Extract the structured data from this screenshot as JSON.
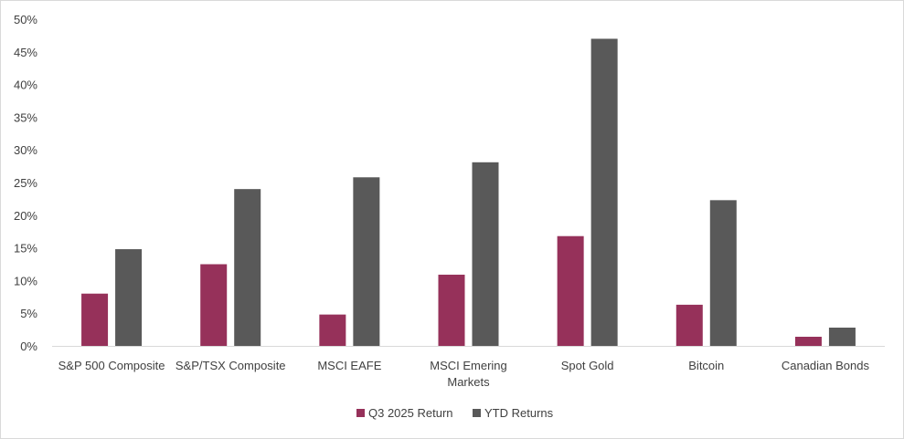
{
  "chart_data": {
    "type": "bar",
    "title": "",
    "xlabel": "",
    "ylabel": "",
    "categories": [
      [
        "S&P 500 Composite"
      ],
      [
        "S&P/TSX Composite"
      ],
      [
        "MSCI EAFE"
      ],
      [
        "MSCI Emering",
        "Markets"
      ],
      [
        "Spot Gold"
      ],
      [
        "Bitcoin"
      ],
      [
        "Canadian Bonds"
      ]
    ],
    "series": [
      {
        "name": "Q3 2025 Return",
        "color": "#96315a",
        "values": [
          8.0,
          12.5,
          4.8,
          10.9,
          16.8,
          6.3,
          1.4
        ]
      },
      {
        "name": "YTD Returns",
        "color": "#595959",
        "values": [
          14.8,
          24.0,
          25.8,
          28.1,
          47.0,
          22.3,
          2.8
        ]
      }
    ],
    "ylim": [
      0,
      50
    ],
    "yticks": [
      0,
      5,
      10,
      15,
      20,
      25,
      30,
      35,
      40,
      45,
      50
    ],
    "ytick_format": "percent",
    "grid": false,
    "legend_position": "bottom"
  }
}
